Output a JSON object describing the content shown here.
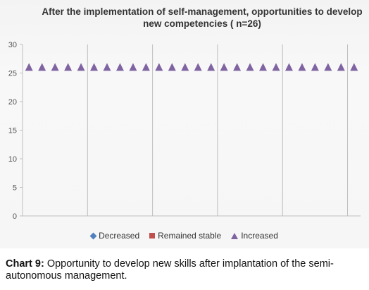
{
  "chart_data": {
    "type": "scatter",
    "title": "After the implementation of self-management, opportunities to develop new competencies ( n=26)",
    "ylim": [
      0,
      30
    ],
    "yticks": [
      0,
      5,
      10,
      15,
      20,
      25,
      30
    ],
    "x": [
      1,
      2,
      3,
      4,
      5,
      6,
      7,
      8,
      9,
      10,
      11,
      12,
      13,
      14,
      15,
      16,
      17,
      18,
      19,
      20,
      21,
      22,
      23,
      24,
      25,
      26
    ],
    "series": [
      {
        "name": "Decreased",
        "marker": "diamond",
        "color": "#4f81bd",
        "values": []
      },
      {
        "name": "Remained stable",
        "marker": "square",
        "color": "#c0504d",
        "values": []
      },
      {
        "name": "Increased",
        "marker": "triangle",
        "color": "#8064a2",
        "values": [
          26,
          26,
          26,
          26,
          26,
          26,
          26,
          26,
          26,
          26,
          26,
          26,
          26,
          26,
          26,
          26,
          26,
          26,
          26,
          26,
          26,
          26,
          26,
          26,
          26,
          26
        ]
      }
    ],
    "grid": false,
    "legend_position": "bottom"
  },
  "caption": {
    "label": "Chart 9:",
    "text": " Opportunity to develop new skills after implantation of the semi-autonomous management."
  }
}
